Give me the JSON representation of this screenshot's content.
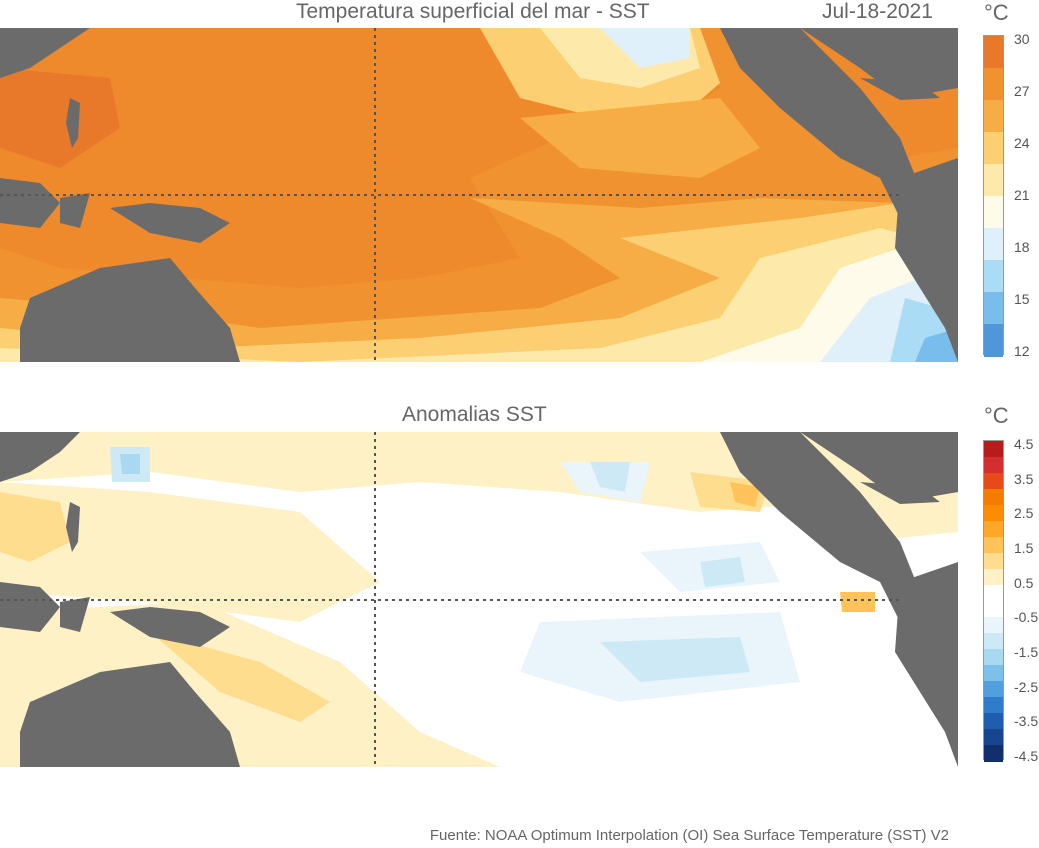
{
  "top": {
    "title": "Temperatura superficial del mar - SST",
    "date": "Jul-18-2021",
    "unit": "°C",
    "colorbar": {
      "ticks": [
        "30",
        "27",
        "24",
        "21",
        "18",
        "15",
        "12"
      ],
      "colors": [
        "#e8782a",
        "#f0922f",
        "#f6ad45",
        "#fbcf72",
        "#fde9aa",
        "#fffbea",
        "#dff0fa",
        "#aadcf5",
        "#78bdeb",
        "#4f97d8"
      ]
    }
  },
  "bottom": {
    "title": "Anomalias SST",
    "unit": "°C",
    "colorbar": {
      "ticks": [
        "4.5",
        "3.5",
        "2.5",
        "1.5",
        "0.5",
        "-0.5",
        "-1.5",
        "-2.5",
        "-3.5",
        "-4.5"
      ],
      "colors": [
        "#b71c1c",
        "#d32f2f",
        "#e64a19",
        "#f57c00",
        "#fb8c00",
        "#ffa726",
        "#ffc35a",
        "#ffdd8e",
        "#fff1c6",
        "#ffffff",
        "#ffffff",
        "#e9f5fb",
        "#cde9f6",
        "#a9d8f1",
        "#7dc1ea",
        "#519fdc",
        "#2f7ccb",
        "#1f5eaf",
        "#17458f",
        "#112f6b"
      ]
    }
  },
  "source": "Fuente: NOAA Optimum Interpolation (OI) Sea Surface Temperature (SST) V2",
  "colors": {
    "land": "#6b6b6b",
    "gridline": "#555555"
  }
}
